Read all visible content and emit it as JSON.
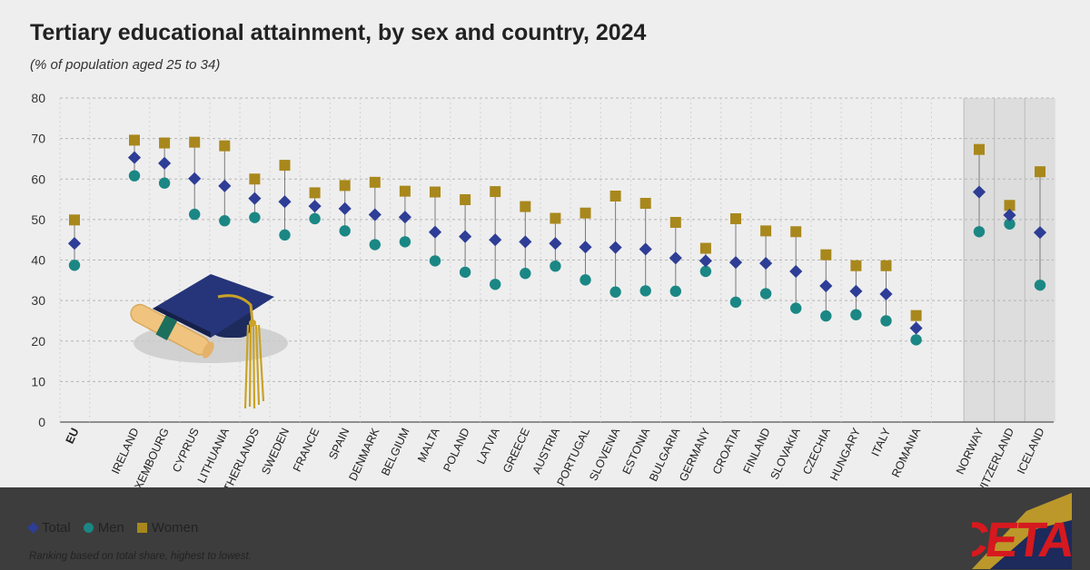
{
  "chart_data": {
    "type": "scatter",
    "title": "Tertiary educational attainment, by sex and country, 2024",
    "subtitle": "(% of population aged 25 to 34)",
    "ylim": [
      0,
      80
    ],
    "yticks": [
      0,
      10,
      20,
      30,
      40,
      50,
      60,
      70,
      80
    ],
    "grid": true,
    "legend_position": "bottom-left",
    "categories": [
      "EU",
      "IRELAND",
      "LUXEMBOURG",
      "CYPRUS",
      "LITHUANIA",
      "NETHERLANDS",
      "SWEDEN",
      "FRANCE",
      "SPAIN",
      "DENMARK",
      "BELGIUM",
      "MALTA",
      "POLAND",
      "LATVIA",
      "GREECE",
      "AUSTRIA",
      "PORTUGAL",
      "SLOVENIA",
      "ESTONIA",
      "BULGARIA",
      "GERMANY",
      "CROATIA",
      "FINLAND",
      "SLOVAKIA",
      "CZECHIA",
      "HUNGARY",
      "ITALY",
      "ROMANIA",
      "NORWAY",
      "SWITZERLAND",
      "ICELAND"
    ],
    "highlighted_categories": [
      "NORWAY",
      "SWITZERLAND",
      "ICELAND"
    ],
    "series": [
      {
        "name": "Total",
        "marker": "diamond",
        "color": "#2e3d96",
        "values": [
          44.1,
          65.3,
          63.9,
          60.1,
          58.3,
          55.2,
          54.4,
          53.3,
          52.7,
          51.2,
          50.6,
          46.9,
          45.8,
          45.0,
          44.5,
          44.1,
          43.2,
          43.1,
          42.7,
          40.5,
          39.8,
          39.4,
          39.2,
          37.2,
          33.6,
          32.3,
          31.6,
          23.2,
          56.8,
          51.1,
          46.8
        ]
      },
      {
        "name": "Men",
        "marker": "circle",
        "color": "#1b8784",
        "values": [
          38.7,
          60.8,
          59.0,
          51.3,
          49.7,
          50.5,
          46.2,
          50.2,
          47.2,
          43.8,
          44.5,
          39.8,
          37.0,
          34.0,
          36.7,
          38.5,
          35.1,
          32.1,
          32.4,
          32.3,
          37.2,
          29.6,
          31.7,
          28.1,
          26.2,
          26.5,
          25.0,
          20.3,
          47.0,
          48.9,
          33.8
        ]
      },
      {
        "name": "Women",
        "marker": "square",
        "color": "#a8881c",
        "values": [
          49.9,
          69.6,
          68.9,
          69.1,
          68.2,
          60.0,
          63.4,
          56.6,
          58.4,
          59.2,
          57.0,
          56.8,
          54.9,
          56.9,
          53.2,
          50.3,
          51.6,
          55.8,
          54.0,
          49.3,
          42.9,
          50.2,
          47.2,
          47.0,
          41.3,
          38.6,
          38.6,
          26.3,
          67.3,
          53.5,
          61.8
        ]
      }
    ]
  },
  "legend": {
    "items": [
      {
        "label": "Total",
        "symbol": "diamond"
      },
      {
        "label": "Men",
        "symbol": "circle"
      },
      {
        "label": "Women",
        "symbol": "square"
      }
    ]
  },
  "footer": {
    "note": "Ranking based on total share, highest to lowest.",
    "logo_text": "CETA"
  },
  "colors": {
    "total": "#2e3d96",
    "men": "#1b8784",
    "women": "#a8881c",
    "connector": "#7a7a7a",
    "highlight_band": "#dddddd",
    "footer_bg": "#3d3d3d",
    "logo_red": "#d6191f",
    "logo_gold": "#c9a227",
    "logo_navy": "#1c2a5c"
  }
}
